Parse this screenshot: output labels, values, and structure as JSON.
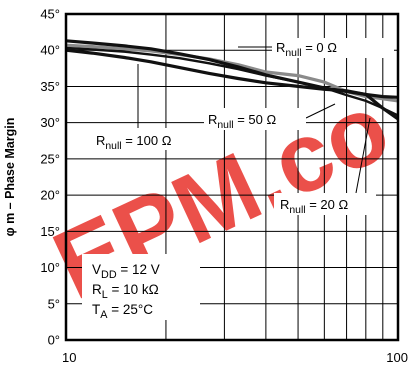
{
  "chart_data": {
    "type": "line",
    "ylabel": "φ m – Phase Margin",
    "x_tick_labels": [
      "10",
      "100"
    ],
    "y_ticks": [
      0,
      5,
      10,
      15,
      20,
      25,
      30,
      35,
      40,
      45
    ],
    "y_tick_labels": [
      "0°",
      "5°",
      "10°",
      "15°",
      "20°",
      "25°",
      "30°",
      "35°",
      "40°",
      "45°"
    ],
    "ylim": [
      0,
      45
    ],
    "xlim": [
      10,
      100
    ],
    "x_scale": "log",
    "grid": true,
    "series": [
      {
        "name": "Rnull = 0 Ω",
        "label_main": "R",
        "label_sub": "null",
        "label_tail": " = 0 Ω",
        "color": "#8a8a8a",
        "x": [
          10,
          12,
          15,
          18,
          22,
          27,
          33,
          40,
          50,
          60,
          70,
          80,
          90,
          100
        ],
        "y": [
          40.7,
          40.5,
          40.2,
          39.9,
          39.4,
          38.8,
          38.0,
          37.0,
          36.5,
          35.6,
          34.3,
          33.6,
          33.3,
          33.0
        ]
      },
      {
        "name": "Rnull = 50 Ω",
        "label_main": "R",
        "label_sub": "null",
        "label_tail": " = 50 Ω",
        "color": "#111111",
        "x": [
          10,
          12,
          15,
          18,
          22,
          27,
          33,
          40,
          50,
          60,
          70,
          80,
          90,
          100
        ],
        "y": [
          41.3,
          41.0,
          40.6,
          40.2,
          39.5,
          38.7,
          37.7,
          36.6,
          35.6,
          34.8,
          34.3,
          33.9,
          33.6,
          33.5
        ]
      },
      {
        "name": "Rnull = 100 Ω",
        "label_main": "R",
        "label_sub": "null",
        "label_tail": " = 100 Ω",
        "color": "#111111",
        "x": [
          10,
          12,
          15,
          18,
          22,
          27,
          33,
          40,
          50,
          60,
          70,
          80,
          90,
          100
        ],
        "y": [
          40.0,
          39.6,
          39.0,
          38.4,
          37.6,
          36.8,
          36.1,
          35.5,
          35.0,
          34.6,
          34.4,
          33.9,
          32.0,
          30.5
        ]
      },
      {
        "name": "Rnull = 20 Ω",
        "label_main": "R",
        "label_sub": "null",
        "label_tail": " = 20 Ω",
        "color": "#111111",
        "x": [
          10,
          12,
          15,
          18,
          22,
          27,
          33,
          40,
          50,
          60,
          70,
          80,
          90,
          100
        ],
        "y": [
          40.3,
          40.1,
          39.8,
          39.4,
          38.9,
          38.2,
          37.4,
          36.5,
          35.6,
          34.8,
          33.8,
          33.0,
          32.0,
          31.0
        ]
      }
    ],
    "conditions": [
      {
        "main": "V",
        "sub": "DD",
        "tail": " = 12 V"
      },
      {
        "main": "R",
        "sub": "L",
        "tail": " = 10 kΩ"
      },
      {
        "main": "T",
        "sub": "A",
        "tail": " = 25°C"
      }
    ]
  },
  "watermark": {
    "text": "EPM.co",
    "color": "#e8312a"
  }
}
